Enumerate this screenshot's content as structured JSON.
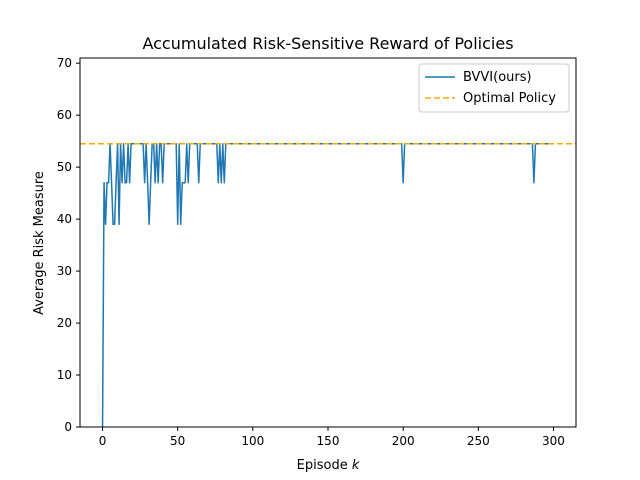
{
  "chart_data": {
    "type": "line",
    "title": "Accumulated Risk-Sensitive Reward of Policies",
    "xlabel_prefix": "Episode ",
    "xlabel_var": "k",
    "ylabel": "Average Risk Measure",
    "xlim": [
      -15,
      315
    ],
    "ylim": [
      0,
      71
    ],
    "xticks": [
      0,
      50,
      100,
      150,
      200,
      250,
      300
    ],
    "yticks": [
      0,
      10,
      20,
      30,
      40,
      50,
      60,
      70
    ],
    "grid": false,
    "legend_position": "top-right",
    "optimal_value": 54.5,
    "series": [
      {
        "name": "BVVI(ours)",
        "color": "#1f77b4",
        "style": "solid",
        "x": [
          0,
          1,
          2,
          3,
          4,
          5,
          6,
          7,
          8,
          9,
          10,
          11,
          12,
          13,
          14,
          15,
          16,
          17,
          18,
          19,
          20,
          21,
          22,
          23,
          24,
          25,
          26,
          27,
          28,
          29,
          30,
          31,
          32,
          33,
          34,
          35,
          36,
          37,
          38,
          39,
          40,
          41,
          42,
          43,
          44,
          45,
          46,
          47,
          48,
          49,
          50,
          51,
          52,
          53,
          54,
          55,
          56,
          57,
          58,
          59,
          60,
          61,
          62,
          63,
          64,
          65,
          66,
          67,
          68,
          69,
          70,
          71,
          72,
          73,
          74,
          75,
          76,
          77,
          78,
          79,
          80,
          81,
          82,
          83,
          84,
          85,
          198,
          199,
          200,
          201,
          285,
          286,
          287,
          288,
          300
        ],
        "y": [
          0,
          47,
          39,
          47,
          47,
          54.5,
          47,
          39,
          39,
          47,
          54.5,
          39,
          54.5,
          47,
          54.5,
          47,
          47,
          54.5,
          47,
          54.5,
          54.5,
          54.5,
          54.5,
          54.5,
          54.5,
          54.5,
          54.5,
          54.5,
          47,
          54.5,
          47,
          39,
          47,
          54.5,
          54.5,
          47,
          54.5,
          47,
          54.5,
          54.5,
          47,
          54.5,
          54.5,
          54.5,
          54.5,
          54.5,
          54.5,
          54.5,
          54.5,
          54.5,
          39,
          54.5,
          39,
          47,
          47,
          47,
          54.5,
          47,
          54.5,
          54.5,
          54.5,
          54.5,
          54.5,
          54.5,
          47,
          54.5,
          54.5,
          54.5,
          54.5,
          54.5,
          54.5,
          54.5,
          54.5,
          54.5,
          54.5,
          54.5,
          54.5,
          47,
          54.5,
          47,
          54.5,
          47,
          54.5,
          54.5,
          54.5,
          54.5,
          54.5,
          54.5,
          47,
          54.5,
          54.5,
          54.5,
          47,
          54.5,
          54.5
        ]
      },
      {
        "name": "Optimal Policy",
        "color": "#ffa500",
        "style": "dashed",
        "x": [
          -15,
          315
        ],
        "y": [
          54.5,
          54.5
        ]
      }
    ]
  }
}
